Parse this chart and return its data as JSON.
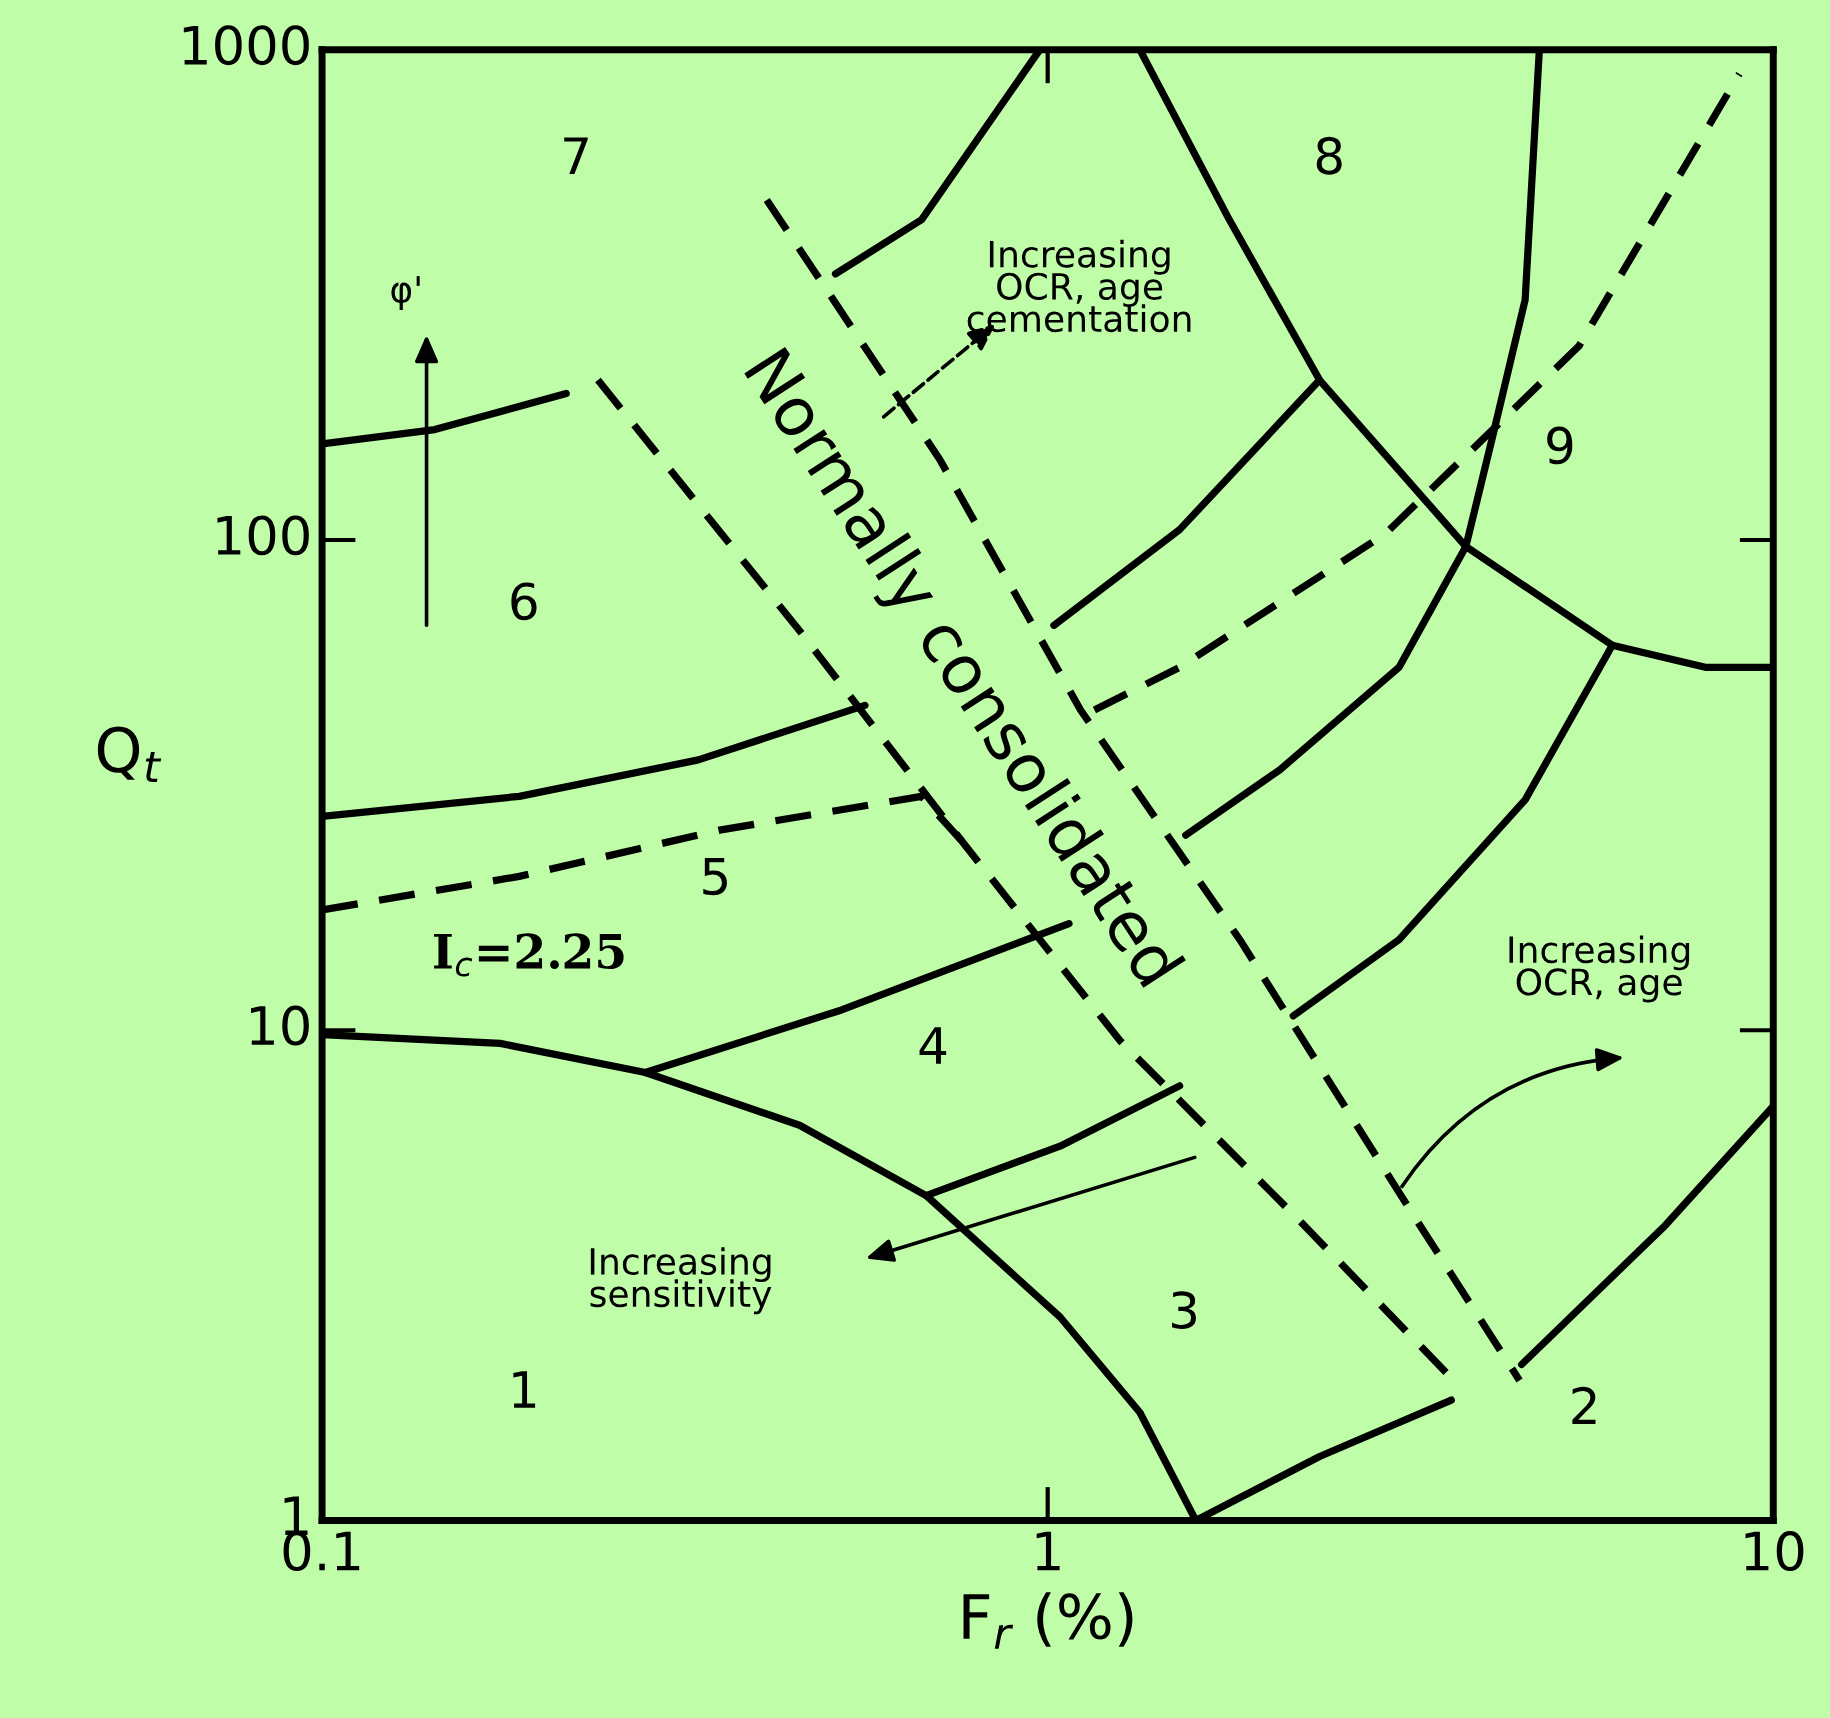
{
  "chart_data": {
    "type": "line",
    "xlabel": "F$_{r}$ (%)",
    "ylabel": "Q$_{t}$",
    "log": "xy",
    "xlim": [
      0.1,
      10
    ],
    "ylim": [
      1,
      1000
    ],
    "xticks": [
      0.1,
      1,
      10
    ],
    "yticks": [
      1,
      10,
      100,
      1000
    ],
    "grid": false,
    "marker": "none",
    "series": [
      {
        "color": "#000000",
        "line_style": "solid",
        "x": [
          0.1,
          0.176,
          0.279,
          0.455,
          0.68,
          1.04,
          1.34,
          1.6
        ],
        "values": [
          9.8,
          9.4,
          8.2,
          6.4,
          4.6,
          2.6,
          1.66,
          1
        ]
      },
      {
        "color": "#000000",
        "line_style": "solid",
        "x": [
          1.6,
          2.37,
          3.6
        ],
        "values": [
          1,
          1.35,
          1.76
        ]
      },
      {
        "color": "#000000",
        "line_style": "solid",
        "x": [
          4.5,
          7.1,
          10
        ],
        "values": [
          2.08,
          4.0,
          7.0
        ]
      },
      {
        "color": "#000000",
        "line_style": "solid",
        "x": [
          0.68,
          1.04,
          1.52
        ],
        "values": [
          4.6,
          5.8,
          7.7
        ]
      },
      {
        "color": "#000000",
        "line_style": "solid",
        "x": [
          0.279,
          0.52,
          1.07
        ],
        "values": [
          8.2,
          11.0,
          16.5
        ]
      },
      {
        "color": "#000000",
        "line_style": "solid",
        "x": [
          4.76,
          4.55,
          4.11,
          3.77,
          3.05,
          2.09,
          1.55
        ],
        "values": [
          1000,
          309,
          164,
          97,
          55,
          34,
          25
        ]
      },
      {
        "color": "#000000",
        "line_style": "solid",
        "x": [
          6.0,
          4.55,
          3.05,
          2.18
        ],
        "values": [
          61,
          29.5,
          15.3,
          10.7
        ]
      },
      {
        "color": "#000000",
        "line_style": "solid",
        "x": [
          1.34,
          1.78,
          2.37,
          3.77,
          6.0,
          8.06,
          10
        ],
        "values": [
          1000,
          450,
          212,
          97,
          61,
          55,
          55
        ]
      },
      {
        "color": "#000000",
        "line_style": "solid",
        "x": [
          0.975,
          0.67,
          0.51
        ],
        "values": [
          1000,
          450,
          349
        ]
      },
      {
        "color": "#000000",
        "line_style": "solid",
        "x": [
          0.1,
          0.143,
          0.217
        ],
        "values": [
          157,
          168,
          199
        ]
      },
      {
        "color": "#000000",
        "line_style": "solid",
        "x": [
          0.1,
          0.187,
          0.33,
          0.56
        ],
        "values": [
          27.3,
          30,
          35.6,
          46
        ]
      },
      {
        "color": "#000000",
        "line_style": "solid",
        "x": [
          1.02,
          1.52,
          2.37
        ],
        "values": [
          67,
          105,
          212
        ]
      },
      {
        "color": "#000000",
        "line_style": "dashed",
        "x": [
          0.1,
          0.187,
          0.353,
          0.67,
          0.76
        ],
        "values": [
          17.6,
          20.6,
          25.6,
          30,
          24.4
        ]
      },
      {
        "color": "#000000",
        "line_style": "dashed",
        "x": [
          1.16,
          1.52,
          2.92,
          5.4,
          8.98
        ],
        "values": [
          45,
          55,
          103,
          249,
          893
        ]
      },
      {
        "color": "#000000",
        "line_style": "dashed",
        "x": [
          0.24,
          0.46,
          0.76,
          1.26,
          2.22,
          3.69
        ],
        "values": [
          212,
          64,
          24.4,
          9.5,
          4.1,
          1.88
        ]
      },
      {
        "color": "#000000",
        "line_style": "dashed",
        "x": [
          0.41,
          0.71,
          1.11,
          1.84,
          3.19,
          4.47
        ],
        "values": [
          494,
          146,
          45,
          15.3,
          4.2,
          1.93
        ]
      }
    ],
    "annotations": [
      "1",
      "2",
      "3",
      "4",
      "5",
      "6",
      "7",
      "8",
      "9",
      "I$_{c}$=2.25",
      "φ'",
      "Normally consolidated",
      "Increasing\nOCR, age\ncementation",
      "Increasing\nOCR, age",
      "Increasing\nsensitivity"
    ]
  }
}
